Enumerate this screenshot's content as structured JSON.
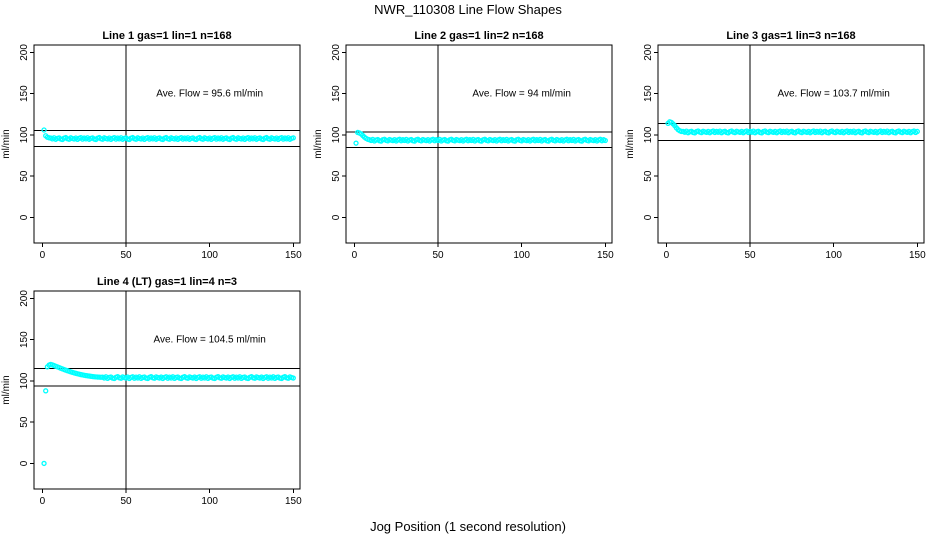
{
  "figure": {
    "title": "NWR_110308  Line Flow Shapes",
    "xlabel": "Jog Position (1 second resolution)"
  },
  "colors": {
    "point": "#00ffff",
    "axis": "#000000",
    "background": "#ffffff"
  },
  "chart_data": [
    {
      "type": "scatter",
      "title": "Line 1 gas=1 lin=1 n=168",
      "annotation": "Ave. Flow =  95.6  ml/min",
      "ave_flow": 95.6,
      "n": 168,
      "ylabel": "ml/min",
      "x_ticks": [
        0,
        50,
        100,
        150
      ],
      "y_ticks": [
        0,
        50,
        100,
        150,
        200
      ],
      "xlim": [
        -5,
        154
      ],
      "ylim": [
        -31,
        209
      ],
      "vline_x": 50,
      "hlines": [
        105.2,
        86.0
      ],
      "x_start": 1,
      "y_values": [
        106,
        99,
        97.2,
        96.5,
        96.2,
        95.2,
        96.6,
        94.7,
        95.8,
        96.4,
        95.0,
        94.5,
        96.1,
        96.8,
        95.4,
        94.8,
        96.5,
        95.7,
        95.1,
        96.3,
        94.6,
        95.9,
        96.7,
        94.9,
        96.2,
        95.2,
        96.6,
        94.7,
        95.8,
        96.4,
        95.0,
        94.5,
        96.1,
        96.8,
        95.4,
        94.8,
        96.5,
        95.7,
        95.1,
        96.3,
        94.6,
        95.9,
        96.7,
        94.9,
        96.2,
        95.2,
        96.6,
        94.7,
        95.8,
        96.4,
        95.0,
        94.5,
        96.1,
        96.8,
        95.4,
        94.8,
        96.5,
        95.7,
        95.1,
        96.3,
        94.6,
        95.9,
        96.7,
        94.9,
        96.2,
        95.2,
        96.6,
        94.7,
        95.8,
        96.4,
        95.0,
        94.5,
        96.1,
        96.8,
        95.4,
        94.8,
        96.5,
        95.7,
        95.1,
        96.3,
        94.6,
        95.9,
        96.7,
        94.9,
        96.2,
        95.2,
        96.6,
        94.7,
        95.8,
        96.4,
        95.0,
        94.5,
        96.1,
        96.8,
        95.4,
        94.8,
        96.5,
        95.7,
        95.1,
        96.3,
        94.6,
        95.9,
        96.7,
        94.9,
        96.2,
        95.2,
        96.6,
        94.7,
        95.8,
        96.4,
        95.0,
        94.5,
        96.1,
        96.8,
        95.4,
        94.8,
        96.5,
        95.7,
        95.1,
        96.3,
        94.6,
        95.9,
        96.7,
        94.9,
        96.2,
        95.2,
        96.6,
        94.7,
        95.8,
        96.4,
        95.0,
        94.5,
        96.1,
        96.8,
        95.4,
        94.8,
        96.5,
        95.7,
        95.1,
        96.3,
        94.6,
        95.9,
        96.7,
        94.9,
        96.2,
        95.2,
        96.6,
        94.7,
        95.8,
        96.4
      ]
    },
    {
      "type": "scatter",
      "title": "Line 2 gas=1 lin=2 n=168",
      "annotation": "Ave. Flow =  94  ml/min",
      "ave_flow": 94,
      "n": 168,
      "ylabel": "ml/min",
      "x_ticks": [
        0,
        50,
        100,
        150
      ],
      "y_ticks": [
        0,
        50,
        100,
        150,
        200
      ],
      "xlim": [
        -5,
        154
      ],
      "ylim": [
        -31,
        209
      ],
      "vline_x": 50,
      "hlines": [
        103.4,
        84.6
      ],
      "x_start": 1,
      "y_values": [
        90,
        103,
        102.4,
        101.2,
        99.3,
        97.4,
        95.8,
        94.7,
        94.2,
        93.2,
        94.6,
        92.7,
        93.8,
        94.4,
        93.0,
        92.5,
        94.1,
        94.8,
        93.4,
        92.8,
        94.5,
        93.7,
        93.1,
        94.3,
        92.6,
        93.9,
        94.7,
        92.9,
        94.2,
        93.2,
        94.6,
        92.7,
        93.8,
        94.4,
        93.0,
        92.5,
        94.1,
        94.8,
        93.4,
        92.8,
        94.5,
        93.7,
        93.1,
        94.3,
        92.6,
        93.9,
        94.7,
        92.9,
        94.2,
        93.2,
        94.6,
        92.7,
        93.8,
        94.4,
        93.0,
        92.5,
        94.1,
        94.8,
        93.4,
        92.8,
        94.5,
        93.7,
        93.1,
        94.3,
        92.6,
        93.9,
        94.7,
        92.9,
        94.2,
        93.2,
        94.6,
        92.7,
        93.8,
        94.4,
        93.0,
        92.5,
        94.1,
        94.8,
        93.4,
        92.8,
        94.5,
        93.7,
        93.1,
        94.3,
        92.6,
        93.9,
        94.7,
        92.9,
        94.2,
        93.2,
        94.6,
        92.7,
        93.8,
        94.4,
        93.0,
        92.5,
        94.1,
        94.8,
        93.4,
        92.8,
        94.5,
        93.7,
        93.1,
        94.3,
        92.6,
        93.9,
        94.7,
        92.9,
        94.2,
        93.2,
        94.6,
        92.7,
        93.8,
        94.4,
        93.0,
        92.5,
        94.1,
        94.8,
        93.4,
        92.8,
        94.5,
        93.7,
        93.1,
        94.3,
        92.6,
        93.9,
        94.7,
        92.9,
        94.2,
        93.2,
        94.6,
        92.7,
        93.8,
        94.4,
        93.0,
        92.5,
        94.1,
        94.8,
        93.4,
        92.8,
        94.5,
        93.7,
        93.1,
        94.3,
        92.6,
        93.9,
        94.7,
        92.9,
        94.2,
        93.2
      ]
    },
    {
      "type": "scatter",
      "title": "Line 3 gas=1 lin=3 n=168",
      "annotation": "Ave. Flow =  103.7  ml/min",
      "ave_flow": 103.7,
      "n": 168,
      "ylabel": "ml/min",
      "x_ticks": [
        0,
        50,
        100,
        150
      ],
      "y_ticks": [
        0,
        50,
        100,
        150,
        200
      ],
      "xlim": [
        -5,
        154
      ],
      "ylim": [
        -31,
        209
      ],
      "vline_x": 50,
      "hlines": [
        114.1,
        93.3
      ],
      "x_start": 1,
      "y_values": [
        114,
        116,
        115.2,
        113.4,
        111.2,
        108.6,
        106.4,
        105.0,
        104.2,
        104.2,
        103.2,
        104.6,
        102.7,
        103.8,
        104.4,
        103.0,
        102.5,
        104.1,
        104.8,
        103.4,
        102.8,
        104.5,
        103.7,
        103.1,
        104.3,
        102.6,
        103.9,
        104.7,
        102.9,
        104.2,
        103.2,
        104.6,
        102.7,
        103.8,
        104.4,
        103.0,
        102.5,
        104.1,
        104.8,
        103.4,
        102.8,
        104.5,
        103.7,
        103.1,
        104.3,
        102.6,
        103.9,
        104.7,
        102.9,
        104.2,
        103.2,
        104.6,
        102.7,
        103.8,
        104.4,
        103.0,
        102.5,
        104.1,
        104.8,
        103.4,
        102.8,
        104.5,
        103.7,
        103.1,
        104.3,
        102.6,
        103.9,
        104.7,
        102.9,
        104.2,
        103.2,
        104.6,
        102.7,
        103.8,
        104.4,
        103.0,
        102.5,
        104.1,
        104.8,
        103.4,
        102.8,
        104.5,
        103.7,
        103.1,
        104.3,
        102.6,
        103.9,
        104.7,
        102.9,
        104.2,
        103.2,
        104.6,
        102.7,
        103.8,
        104.4,
        103.0,
        102.5,
        104.1,
        104.8,
        103.4,
        102.8,
        104.5,
        103.7,
        103.1,
        104.3,
        102.6,
        103.9,
        104.7,
        102.9,
        104.2,
        103.2,
        104.6,
        102.7,
        103.8,
        104.4,
        103.0,
        102.5,
        104.1,
        104.8,
        103.4,
        102.8,
        104.5,
        103.7,
        103.1,
        104.3,
        102.6,
        103.9,
        104.7,
        102.9,
        104.2,
        103.2,
        104.6,
        102.7,
        103.8,
        104.4,
        103.0,
        102.5,
        104.1,
        104.8,
        103.4,
        102.8,
        104.5,
        103.7,
        103.1,
        104.3,
        102.6,
        103.9,
        104.7,
        102.9,
        104.2
      ]
    },
    {
      "type": "scatter",
      "title": "Line 4 (LT) gas=1 lin=4 n=3",
      "annotation": "Ave. Flow =  104.5  ml/min",
      "ave_flow": 104.5,
      "n": 3,
      "ylabel": "ml/min",
      "x_ticks": [
        0,
        50,
        100,
        150
      ],
      "y_ticks": [
        0,
        50,
        100,
        150,
        200
      ],
      "xlim": [
        -5,
        154
      ],
      "ylim": [
        -31,
        209
      ],
      "vline_x": 50,
      "hlines": [
        115.0,
        94.1
      ],
      "x_start": 1,
      "y_values": [
        0,
        88,
        117,
        119.2,
        120,
        119.4,
        118.6,
        117.8,
        117,
        116.2,
        115.4,
        114.6,
        113.8,
        113.1,
        112.4,
        111.7,
        111,
        110.4,
        109.8,
        109.2,
        108.7,
        108.2,
        107.7,
        107.3,
        106.9,
        106.5,
        106.2,
        105.9,
        105.6,
        105.3,
        105.1,
        104.9,
        104.7,
        104.6,
        104.5,
        104.6,
        103.6,
        105.0,
        103.1,
        104.2,
        104.8,
        103.4,
        102.9,
        104.5,
        105.2,
        103.8,
        103.2,
        104.9,
        104.1,
        103.5,
        104.7,
        103.0,
        104.3,
        105.1,
        103.3,
        104.6,
        103.6,
        105.0,
        103.1,
        104.2,
        104.8,
        103.4,
        102.9,
        104.5,
        105.2,
        103.8,
        103.2,
        104.9,
        104.1,
        103.5,
        104.7,
        103.0,
        104.3,
        105.1,
        103.3,
        104.6,
        103.6,
        105.0,
        103.1,
        104.2,
        104.8,
        103.4,
        102.9,
        104.5,
        105.2,
        103.8,
        103.2,
        104.9,
        104.1,
        103.5,
        104.7,
        103.0,
        104.3,
        105.1,
        103.3,
        104.6,
        103.6,
        105.0,
        103.1,
        104.2,
        104.8,
        103.4,
        102.9,
        104.5,
        105.2,
        103.8,
        103.2,
        104.9,
        104.1,
        103.5,
        104.7,
        103.0,
        104.3,
        105.1,
        103.3,
        104.6,
        103.6,
        105.0,
        103.1,
        104.2,
        104.8,
        103.4,
        102.9,
        104.5,
        105.2,
        103.8,
        103.2,
        104.9,
        104.1,
        103.5,
        104.7,
        103.0,
        104.3,
        105.1,
        103.3,
        104.6,
        103.6,
        105.0,
        103.1,
        104.2,
        104.8,
        103.4,
        102.9,
        104.5,
        105.2,
        103.8,
        103.2,
        104.9,
        104.1,
        103.5
      ]
    }
  ]
}
